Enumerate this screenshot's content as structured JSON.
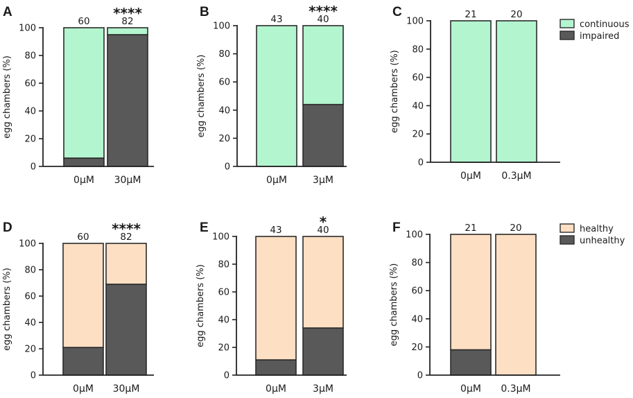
{
  "colors": {
    "continuous": "#b3f5cf",
    "impaired": "#595959",
    "healthy": "#fddfc3",
    "unhealthy": "#595959"
  },
  "legends": [
    {
      "row": 0,
      "items": [
        {
          "label": "continuous",
          "color": "#b3f5cf"
        },
        {
          "label": "impaired",
          "color": "#595959"
        }
      ]
    },
    {
      "row": 1,
      "items": [
        {
          "label": "healthy",
          "color": "#fddfc3"
        },
        {
          "label": "unhealthy",
          "color": "#595959"
        }
      ]
    }
  ],
  "chart_data": [
    {
      "panel": "A",
      "type": "bar",
      "stacked": true,
      "ylabel": "egg chambers (%)",
      "ylim": [
        0,
        100
      ],
      "yticks": [
        0,
        20,
        40,
        60,
        80,
        100
      ],
      "categories": [
        "0μM",
        "30μM"
      ],
      "counts": [
        "60",
        "82"
      ],
      "significance": [
        "",
        "****"
      ],
      "series": [
        {
          "name": "impaired",
          "values": [
            6,
            95
          ]
        },
        {
          "name": "continuous",
          "values": [
            94,
            5
          ]
        }
      ]
    },
    {
      "panel": "B",
      "type": "bar",
      "stacked": true,
      "ylabel": "egg chambers (%)",
      "ylim": [
        0,
        100
      ],
      "yticks": [
        0,
        20,
        40,
        60,
        80,
        100
      ],
      "categories": [
        "0μM",
        "3μM"
      ],
      "counts": [
        "43",
        "40"
      ],
      "significance": [
        "",
        "****"
      ],
      "series": [
        {
          "name": "impaired",
          "values": [
            0,
            44
          ]
        },
        {
          "name": "continuous",
          "values": [
            100,
            56
          ]
        }
      ]
    },
    {
      "panel": "C",
      "type": "bar",
      "stacked": true,
      "ylabel": "egg chambers (%)",
      "ylim": [
        0,
        100
      ],
      "yticks": [
        0,
        20,
        40,
        60,
        80,
        100
      ],
      "categories": [
        "0μM",
        "0.3μM"
      ],
      "counts": [
        "21",
        "20"
      ],
      "significance": [
        "",
        ""
      ],
      "series": [
        {
          "name": "impaired",
          "values": [
            0,
            0
          ]
        },
        {
          "name": "continuous",
          "values": [
            100,
            100
          ]
        }
      ]
    },
    {
      "panel": "D",
      "type": "bar",
      "stacked": true,
      "ylabel": "egg chambers (%)",
      "ylim": [
        0,
        100
      ],
      "yticks": [
        0,
        20,
        40,
        60,
        80,
        100
      ],
      "categories": [
        "0μM",
        "30μM"
      ],
      "counts": [
        "60",
        "82"
      ],
      "significance": [
        "",
        "****"
      ],
      "series": [
        {
          "name": "unhealthy",
          "values": [
            21,
            69
          ]
        },
        {
          "name": "healthy",
          "values": [
            79,
            31
          ]
        }
      ]
    },
    {
      "panel": "E",
      "type": "bar",
      "stacked": true,
      "ylabel": "egg chambers (%)",
      "ylim": [
        0,
        100
      ],
      "yticks": [
        0,
        20,
        40,
        60,
        80,
        100
      ],
      "categories": [
        "0μM",
        "3μM"
      ],
      "counts": [
        "43",
        "40"
      ],
      "significance": [
        "",
        "*"
      ],
      "series": [
        {
          "name": "unhealthy",
          "values": [
            11,
            34
          ]
        },
        {
          "name": "healthy",
          "values": [
            89,
            66
          ]
        }
      ]
    },
    {
      "panel": "F",
      "type": "bar",
      "stacked": true,
      "ylabel": "egg chambers (%)",
      "ylim": [
        0,
        100
      ],
      "yticks": [
        0,
        20,
        40,
        60,
        80,
        100
      ],
      "categories": [
        "0μM",
        "0.3μM"
      ],
      "counts": [
        "21",
        "20"
      ],
      "significance": [
        "",
        ""
      ],
      "series": [
        {
          "name": "unhealthy",
          "values": [
            18,
            0
          ]
        },
        {
          "name": "healthy",
          "values": [
            82,
            100
          ]
        }
      ]
    }
  ]
}
